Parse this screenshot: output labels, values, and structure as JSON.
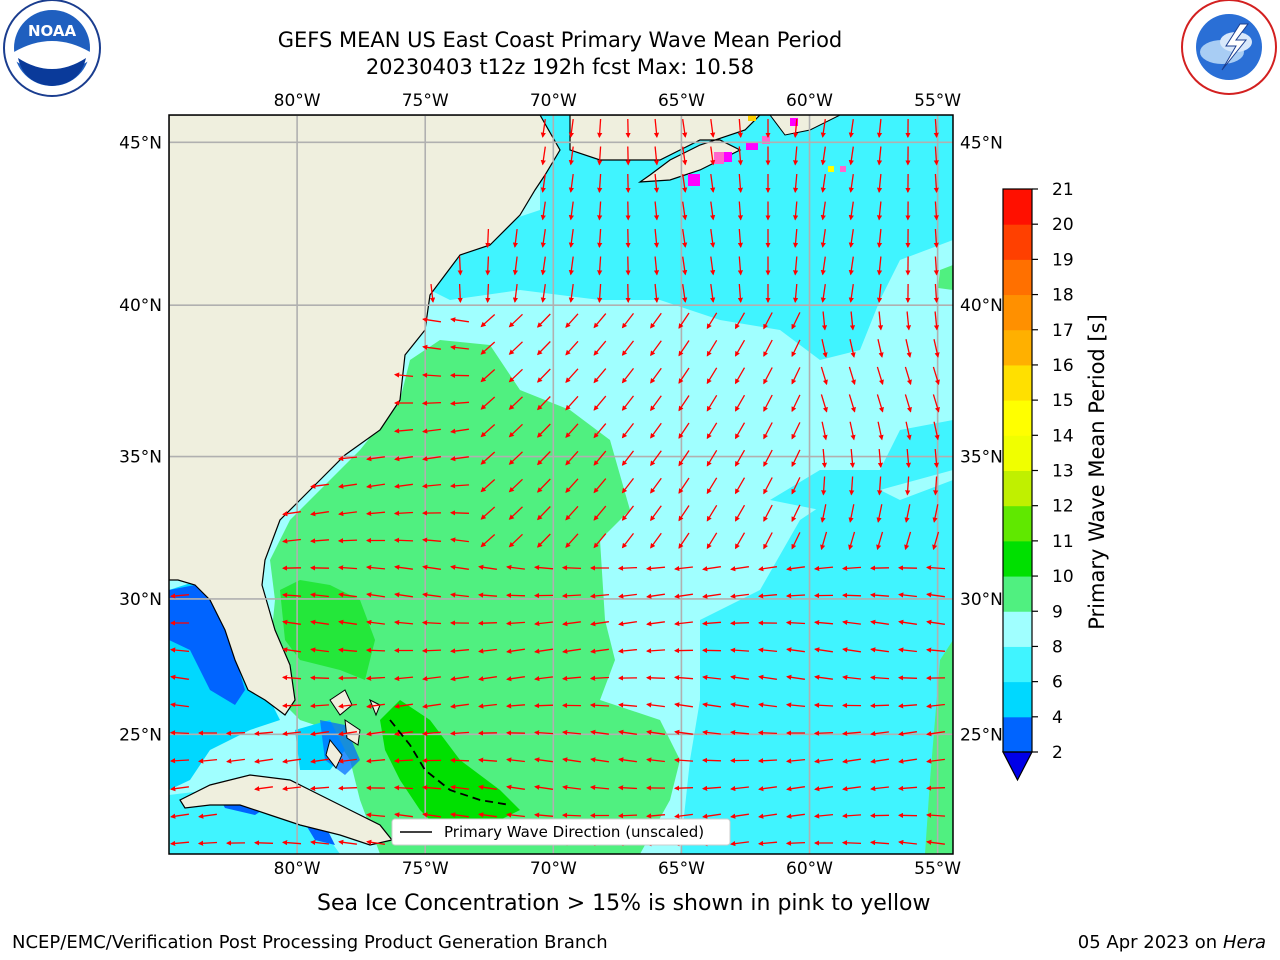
{
  "header": {
    "title_line1": "GEFS MEAN US East Coast Primary Wave Mean Period",
    "title_line2": "20230403 t12z 192h fcst   Max: 10.58"
  },
  "logos": {
    "left": "noaa-logo",
    "right": "nws-logo"
  },
  "map": {
    "lon_labels": [
      "80°W",
      "75°W",
      "70°W",
      "65°W",
      "60°W",
      "55°W"
    ],
    "lon_values": [
      -80,
      -75,
      -70,
      -65,
      -60,
      -55
    ],
    "lat_labels": [
      "45°N",
      "40°N",
      "35°N",
      "30°N",
      "25°N"
    ],
    "lat_values": [
      45,
      40,
      35,
      30,
      25
    ],
    "lon_range": [
      -85,
      -54.4
    ],
    "lat_range": [
      20.4,
      45.8
    ],
    "legend_label": "Primary Wave Direction (unscaled)",
    "land_color": "#efefde",
    "vector_color": "#ff0000"
  },
  "colorbar": {
    "label": "Primary Wave Mean Period [s]",
    "ticks": [
      "2",
      "4",
      "6",
      "8",
      "9",
      "10",
      "11",
      "12",
      "13",
      "14",
      "15",
      "16",
      "17",
      "18",
      "19",
      "20",
      "21"
    ],
    "colors": [
      "#0064ff",
      "#00d8ff",
      "#40f4ff",
      "#a0ffff",
      "#50f080",
      "#00e000",
      "#60e800",
      "#c0f000",
      "#f0ff00",
      "#ffff00",
      "#ffe000",
      "#ffb000",
      "#ff9000",
      "#ff7000",
      "#ff4000",
      "#ff1000"
    ],
    "under_color": "#0000e8"
  },
  "caption": "Sea Ice Concentration > 15% is shown in pink to yellow",
  "footer": {
    "left": "NCEP/EMC/Verification Post Processing Product Generation Branch",
    "right_date": "05 Apr 2023 on",
    "right_host": "Hera"
  }
}
